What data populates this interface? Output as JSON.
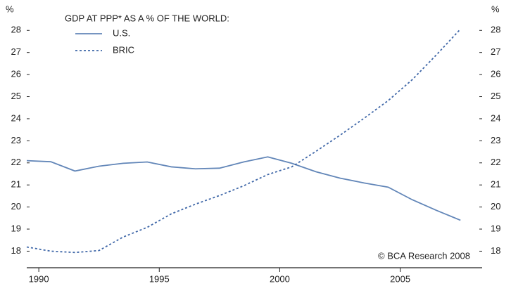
{
  "chart_data": {
    "type": "line",
    "title": "GDP AT PPP* AS A % OF THE WORLD:",
    "y_label": "%",
    "y2_label": "%",
    "annotation": "© BCA Research 2008",
    "xlim": [
      1989.5,
      2008.4
    ],
    "xticks": [
      1990,
      1995,
      2000,
      2005
    ],
    "ylim": [
      17.25,
      28.9
    ],
    "yticks": [
      18,
      19,
      20,
      21,
      22,
      23,
      24,
      25,
      26,
      27,
      28
    ],
    "y2lim": [
      17.25,
      28.9
    ],
    "y2ticks": [
      18,
      19,
      20,
      21,
      22,
      23,
      24,
      25,
      26,
      27,
      28
    ],
    "legend": "upper left",
    "x": [
      1989.5,
      1990.5,
      1991.5,
      1992.5,
      1993.5,
      1994.5,
      1995.5,
      1996.5,
      1997.5,
      1998.5,
      1999.5,
      2000.5,
      2001.5,
      2002.5,
      2003.5,
      2004.5,
      2005.5,
      2006.5,
      2007.5
    ],
    "series": [
      {
        "name": "U.S.",
        "color": "#6286b8",
        "line_style": "solid",
        "values": [
          22.1,
          22.05,
          21.63,
          21.85,
          21.98,
          22.04,
          21.82,
          21.73,
          21.76,
          22.04,
          22.27,
          21.98,
          21.6,
          21.31,
          21.09,
          20.9,
          20.33,
          19.85,
          19.4
        ]
      },
      {
        "name": "BRIC",
        "color": "#3f67a8",
        "line_style": "dotted",
        "values": [
          18.19,
          18.0,
          17.94,
          18.03,
          18.64,
          19.08,
          19.69,
          20.13,
          20.52,
          20.96,
          21.47,
          21.82,
          22.52,
          23.25,
          24.02,
          24.82,
          25.77,
          26.89,
          28.06
        ]
      }
    ]
  }
}
